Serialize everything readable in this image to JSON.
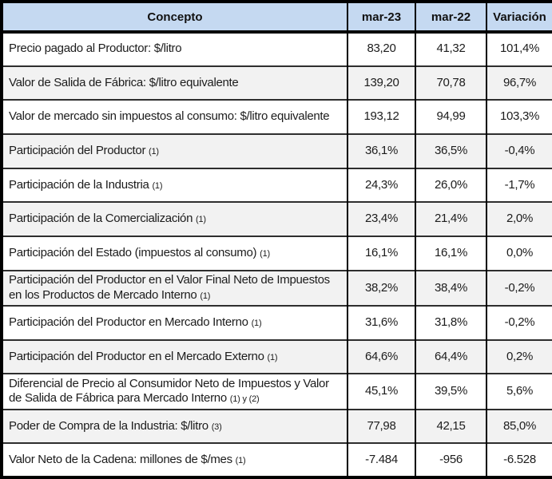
{
  "table": {
    "columns": [
      "Concepto",
      "mar-23",
      "mar-22",
      "Variación"
    ],
    "rows": [
      {
        "concepto": "Precio pagado al Productor: $/litro",
        "note": "",
        "mar23": "83,20",
        "mar22": "41,32",
        "variacion": "101,4%"
      },
      {
        "concepto": "Valor de Salida de Fábrica: $/litro equivalente",
        "note": "",
        "mar23": "139,20",
        "mar22": "70,78",
        "variacion": "96,7%"
      },
      {
        "concepto": "Valor de mercado sin impuestos al consumo: $/litro equivalente",
        "note": "",
        "mar23": "193,12",
        "mar22": "94,99",
        "variacion": "103,3%"
      },
      {
        "concepto": "Participación del Productor",
        "note": "(1)",
        "mar23": "36,1%",
        "mar22": "36,5%",
        "variacion": "-0,4%"
      },
      {
        "concepto": "Participación de la Industria",
        "note": "(1)",
        "mar23": "24,3%",
        "mar22": "26,0%",
        "variacion": "-1,7%"
      },
      {
        "concepto": "Participación de la Comercialización",
        "note": "(1)",
        "mar23": "23,4%",
        "mar22": "21,4%",
        "variacion": "2,0%"
      },
      {
        "concepto": "Participación del Estado (impuestos al consumo)",
        "note": "(1)",
        "mar23": "16,1%",
        "mar22": "16,1%",
        "variacion": "0,0%"
      },
      {
        "concepto": "Participación del Productor en el Valor Final Neto de Impuestos en los Productos de Mercado Interno",
        "note": "(1)",
        "mar23": "38,2%",
        "mar22": "38,4%",
        "variacion": "-0,2%"
      },
      {
        "concepto": "Participación del Productor en Mercado Interno",
        "note": "(1)",
        "mar23": "31,6%",
        "mar22": "31,8%",
        "variacion": "-0,2%"
      },
      {
        "concepto": "Participación del Productor en el Mercado Externo",
        "note": "(1)",
        "mar23": "64,6%",
        "mar22": "64,4%",
        "variacion": "0,2%"
      },
      {
        "concepto": "Diferencial de Precio al Consumidor Neto de Impuestos y Valor de Salida de Fábrica para Mercado Interno",
        "note": "(1) y (2)",
        "mar23": "45,1%",
        "mar22": "39,5%",
        "variacion": "5,6%"
      },
      {
        "concepto": "Poder de Compra de la Industria: $/litro",
        "note": "(3)",
        "mar23": "77,98",
        "mar22": "42,15",
        "variacion": "85,0%"
      },
      {
        "concepto": "Valor Neto de la Cadena: millones de $/mes",
        "note": "(1)",
        "mar23": "-7.484",
        "mar22": "-956",
        "variacion": "-6.528"
      }
    ]
  },
  "colors": {
    "header_bg": "#c5d9f1",
    "alt_row_bg": "#f2f2f2",
    "border": "#000000",
    "text": "#1c1c1c"
  }
}
